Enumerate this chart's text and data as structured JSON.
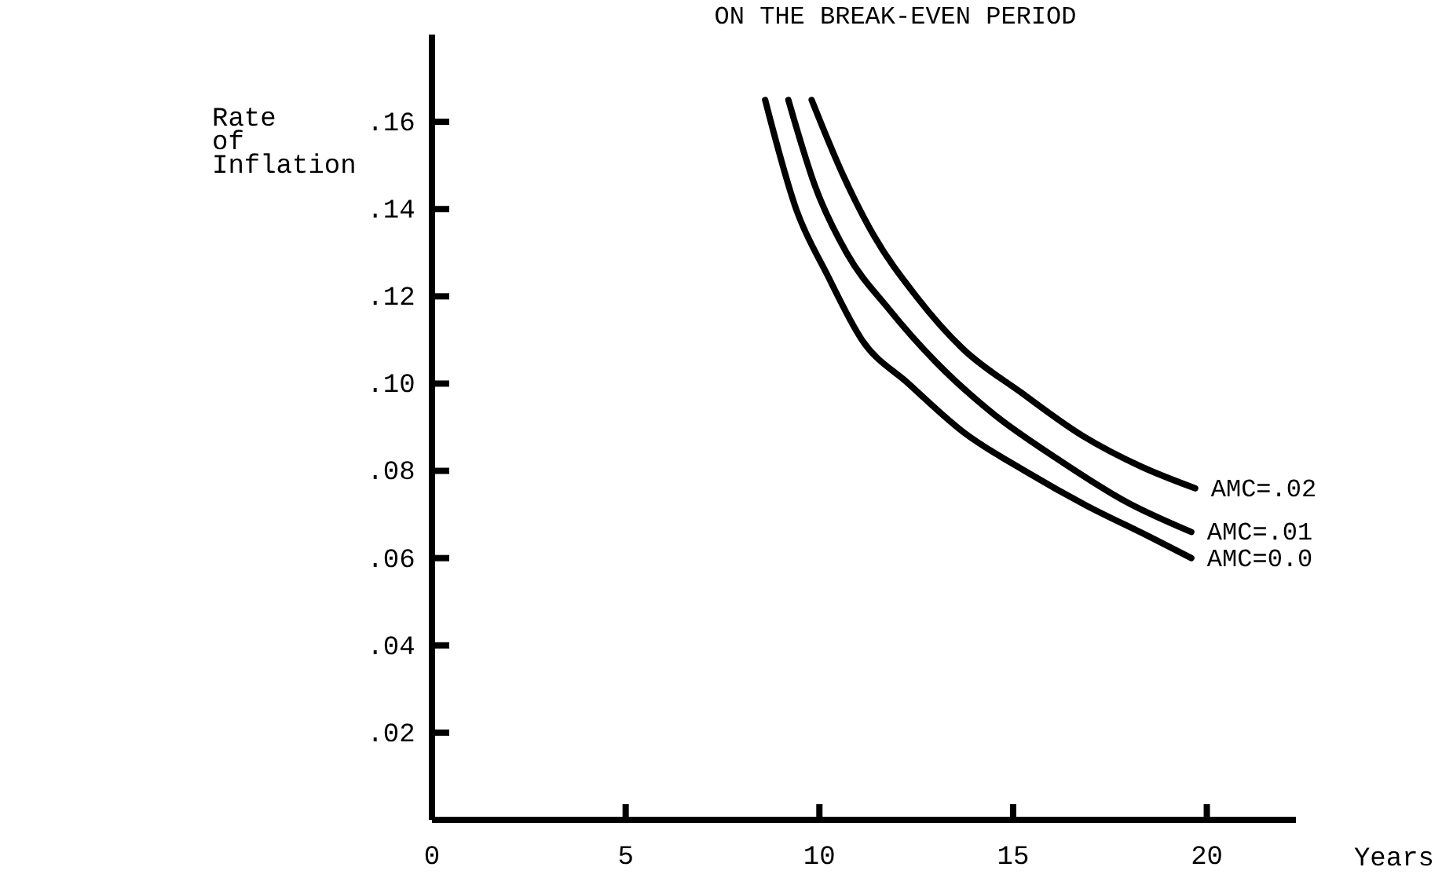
{
  "chart_data": {
    "type": "line",
    "title": "ON THE BREAK-EVEN PERIOD",
    "xlabel": "Years",
    "ylabel": "Rate of Inflation",
    "xlim": [
      0,
      22.3
    ],
    "ylim": [
      0,
      0.18
    ],
    "xticks": [
      0,
      5,
      10,
      15,
      20
    ],
    "yticks": [
      {
        "value": 0.02,
        "label": ".02"
      },
      {
        "value": 0.04,
        "label": ".04"
      },
      {
        "value": 0.06,
        "label": ".06"
      },
      {
        "value": 0.08,
        "label": ".08"
      },
      {
        "value": 0.1,
        "label": ".10"
      },
      {
        "value": 0.12,
        "label": ".12"
      },
      {
        "value": 0.14,
        "label": ".14"
      },
      {
        "value": 0.16,
        "label": ".16"
      }
    ],
    "grid": false,
    "legend": false,
    "marker": "none",
    "line_style": "solid",
    "series": [
      {
        "name": "AMC=.02",
        "color": "#000000",
        "x": [
          9.8,
          10.6,
          11.4,
          12.5,
          13.7,
          15.2,
          16.8,
          18.3,
          19.7
        ],
        "values": [
          0.165,
          0.148,
          0.134,
          0.12,
          0.108,
          0.098,
          0.088,
          0.081,
          0.076
        ]
      },
      {
        "name": "AMC=.01",
        "color": "#000000",
        "x": [
          9.2,
          9.9,
          10.7,
          11.8,
          13.0,
          14.5,
          16.1,
          17.9,
          19.6
        ],
        "values": [
          0.165,
          0.145,
          0.13,
          0.117,
          0.105,
          0.093,
          0.083,
          0.073,
          0.066
        ]
      },
      {
        "name": "AMC=0.0",
        "color": "#000000",
        "x": [
          8.6,
          9.4,
          10.2,
          11.1,
          12.3,
          13.7,
          15.3,
          16.9,
          18.5,
          19.6
        ],
        "values": [
          0.165,
          0.14,
          0.125,
          0.11,
          0.1,
          0.089,
          0.08,
          0.072,
          0.065,
          0.06
        ]
      }
    ]
  }
}
